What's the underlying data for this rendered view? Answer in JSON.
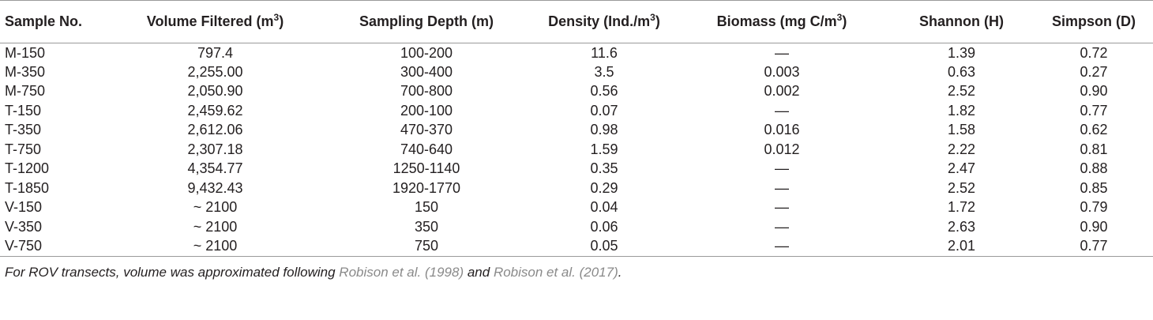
{
  "table": {
    "headers": {
      "sample": "Sample No.",
      "volume": "Volume Filtered (m",
      "volume_sup": "3",
      "volume_close": ")",
      "depth": "Sampling Depth (m)",
      "density": "Density (Ind./m",
      "density_sup": "3",
      "density_close": ")",
      "biomass": "Biomass (mg C/m",
      "biomass_sup": "3",
      "biomass_close": ")",
      "shannon": "Shannon (H)",
      "simpson": "Simpson (D)"
    },
    "rows": [
      {
        "sample": "M-150",
        "volume": "797.4",
        "depth": "100-200",
        "density": "11.6",
        "biomass": "—",
        "shannon": "1.39",
        "simpson": "0.72"
      },
      {
        "sample": "M-350",
        "volume": "2,255.00",
        "depth": "300-400",
        "density": "3.5",
        "biomass": "0.003",
        "shannon": "0.63",
        "simpson": "0.27"
      },
      {
        "sample": "M-750",
        "volume": "2,050.90",
        "depth": "700-800",
        "density": "0.56",
        "biomass": "0.002",
        "shannon": "2.52",
        "simpson": "0.90"
      },
      {
        "sample": "T-150",
        "volume": "2,459.62",
        "depth": "200-100",
        "density": "0.07",
        "biomass": "—",
        "shannon": "1.82",
        "simpson": "0.77"
      },
      {
        "sample": "T-350",
        "volume": "2,612.06",
        "depth": "470-370",
        "density": "0.98",
        "biomass": "0.016",
        "shannon": "1.58",
        "simpson": "0.62"
      },
      {
        "sample": "T-750",
        "volume": "2,307.18",
        "depth": "740-640",
        "density": "1.59",
        "biomass": "0.012",
        "shannon": "2.22",
        "simpson": "0.81"
      },
      {
        "sample": "T-1200",
        "volume": "4,354.77",
        "depth": "1250-1140",
        "density": "0.35",
        "biomass": "—",
        "shannon": "2.47",
        "simpson": "0.88"
      },
      {
        "sample": "T-1850",
        "volume": "9,432.43",
        "depth": "1920-1770",
        "density": "0.29",
        "biomass": "—",
        "shannon": "2.52",
        "simpson": "0.85"
      },
      {
        "sample": "V-150",
        "volume": "~ 2100",
        "depth": "150",
        "density": "0.04",
        "biomass": "—",
        "shannon": "1.72",
        "simpson": "0.79"
      },
      {
        "sample": "V-350",
        "volume": "~ 2100",
        "depth": "350",
        "density": "0.06",
        "biomass": "—",
        "shannon": "2.63",
        "simpson": "0.90"
      },
      {
        "sample": "V-750",
        "volume": "~ 2100",
        "depth": "750",
        "density": "0.05",
        "biomass": "—",
        "shannon": "2.01",
        "simpson": "0.77"
      }
    ]
  },
  "footnote": {
    "text_before": "For ROV transects, volume was approximated following ",
    "ref1": "Robison et al. (1998)",
    "text_mid": " and ",
    "ref2": "Robison et al. (2017)",
    "text_after": "."
  },
  "colors": {
    "text": "#231f20",
    "rule": "#9a9a9a",
    "reference_link": "#8a8a8a"
  }
}
